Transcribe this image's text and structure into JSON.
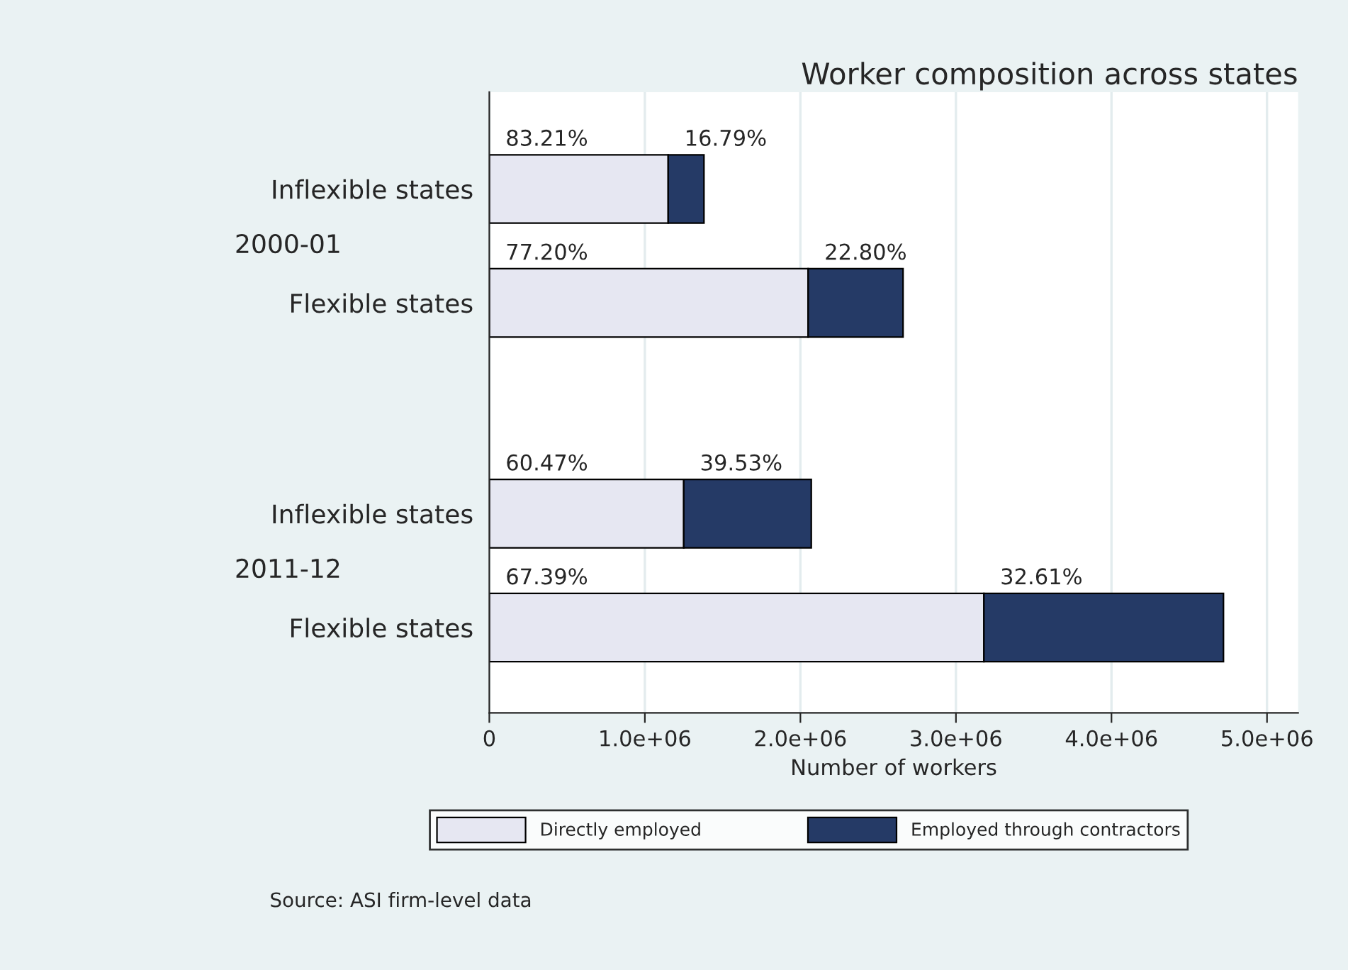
{
  "chart_data": {
    "type": "bar",
    "orientation": "horizontal",
    "stacked": true,
    "title": "Worker composition across states",
    "xlabel": "Number of workers",
    "categories": [
      "Inflexible states",
      "Flexible states",
      "Inflexible states",
      "Flexible states"
    ],
    "series": [
      {
        "name": "Directly employed",
        "color": "#e6e7f2",
        "values": [
          1150000,
          2050000,
          1250000,
          3180000
        ]
      },
      {
        "name": "Employed through contractors",
        "color": "#253a66",
        "values": [
          230000,
          610000,
          820000,
          1540000
        ]
      }
    ],
    "xlim": [
      0,
      5200000
    ],
    "xticks": [
      0,
      {
        "value": 1000000,
        "label": "1.0e+06"
      },
      {
        "value": 2000000,
        "label": "2.0e+06"
      },
      {
        "value": 3000000,
        "label": "3.0e+06"
      },
      {
        "value": 4000000,
        "label": "4.0e+06"
      },
      {
        "value": 5000000,
        "label": "5.0e+06"
      }
    ],
    "grid": "x",
    "legend": "bottom",
    "annotations": [
      "83.21%",
      "16.79%",
      "77.20%",
      "22.80%",
      "60.47%",
      "39.53%",
      "67.39%",
      "32.61%",
      "2000-01",
      "2011-12",
      "Source: ASI firm-level data"
    ]
  }
}
